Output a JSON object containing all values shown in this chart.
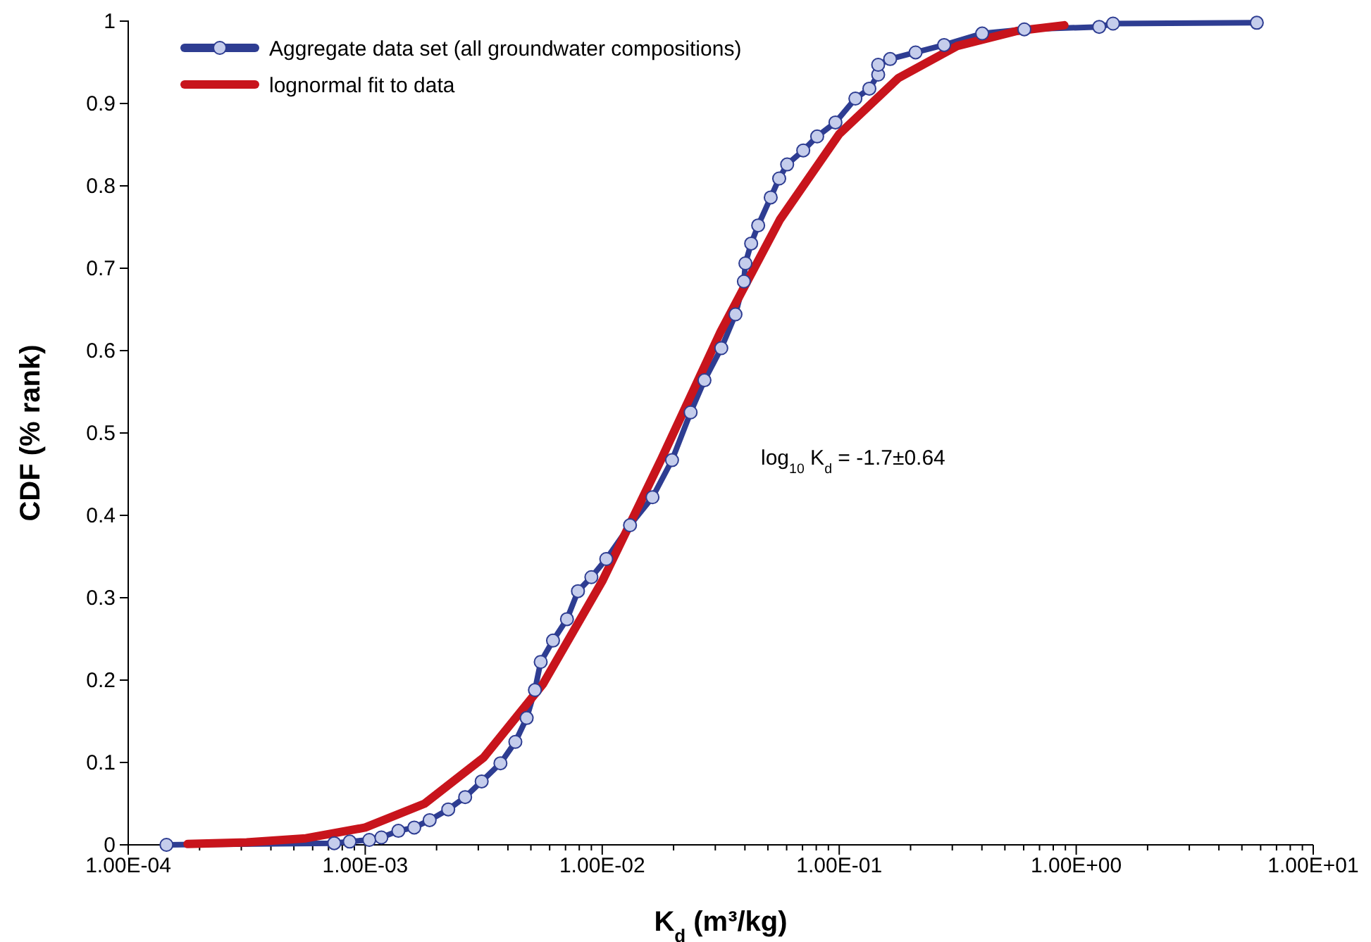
{
  "chart_data": {
    "type": "line",
    "xlabel": "K$_{d}$ (m³/kg)",
    "ylabel": "CDF (% rank)",
    "log": "x",
    "xlim": [
      0.0001,
      10
    ],
    "ylim": [
      0,
      1
    ],
    "xticks": [
      {
        "value": 0.0001,
        "label": "1.00E-04"
      },
      {
        "value": 0.0002,
        "label": null
      },
      {
        "value": 0.0003,
        "label": null
      },
      {
        "value": 0.0004,
        "label": null
      },
      {
        "value": 0.0005,
        "label": null
      },
      {
        "value": 0.0006,
        "label": null
      },
      {
        "value": 0.0007,
        "label": null
      },
      {
        "value": 0.0008,
        "label": null
      },
      {
        "value": 0.0009,
        "label": null
      },
      {
        "value": 0.001,
        "label": "1.00E-03"
      },
      {
        "value": 0.002,
        "label": null
      },
      {
        "value": 0.003,
        "label": null
      },
      {
        "value": 0.004,
        "label": null
      },
      {
        "value": 0.005,
        "label": null
      },
      {
        "value": 0.006,
        "label": null
      },
      {
        "value": 0.007,
        "label": null
      },
      {
        "value": 0.008,
        "label": null
      },
      {
        "value": 0.009,
        "label": null
      },
      {
        "value": 0.01,
        "label": "1.00E-02"
      },
      {
        "value": 0.02,
        "label": null
      },
      {
        "value": 0.03,
        "label": null
      },
      {
        "value": 0.04,
        "label": null
      },
      {
        "value": 0.05,
        "label": null
      },
      {
        "value": 0.06,
        "label": null
      },
      {
        "value": 0.07,
        "label": null
      },
      {
        "value": 0.08,
        "label": null
      },
      {
        "value": 0.09,
        "label": null
      },
      {
        "value": 0.1,
        "label": "1.00E-01"
      },
      {
        "value": 0.2,
        "label": null
      },
      {
        "value": 0.3,
        "label": null
      },
      {
        "value": 0.4,
        "label": null
      },
      {
        "value": 0.5,
        "label": null
      },
      {
        "value": 0.6,
        "label": null
      },
      {
        "value": 0.7,
        "label": null
      },
      {
        "value": 0.8,
        "label": null
      },
      {
        "value": 0.9,
        "label": null
      },
      {
        "value": 1,
        "label": "1.00E+00"
      },
      {
        "value": 2,
        "label": null
      },
      {
        "value": 3,
        "label": null
      },
      {
        "value": 4,
        "label": null
      },
      {
        "value": 5,
        "label": null
      },
      {
        "value": 6,
        "label": null
      },
      {
        "value": 7,
        "label": null
      },
      {
        "value": 8,
        "label": null
      },
      {
        "value": 9,
        "label": null
      },
      {
        "value": 10,
        "label": "1.00E+01"
      }
    ],
    "yticks": [
      0,
      0.1,
      0.2,
      0.3,
      0.4,
      0.5,
      0.6,
      0.7,
      0.8,
      0.9,
      1
    ],
    "legend": "top left",
    "grid": false,
    "annotations": [
      "log$_{10}$ K$_{d}$ = -1.7±0.64"
    ],
    "series": [
      {
        "name": "Aggregate data set (all groundwater compositions)",
        "color": "#2e3d92",
        "marker": "circle",
        "x": [
          0.000145,
          0.00074,
          0.00086,
          0.00104,
          0.00117,
          0.00138,
          0.00161,
          0.00187,
          0.00224,
          0.00264,
          0.0031,
          0.00372,
          0.0043,
          0.0048,
          0.0052,
          0.0055,
          0.0062,
          0.0071,
          0.0079,
          0.009,
          0.0104,
          0.0131,
          0.0163,
          0.0197,
          0.0236,
          0.027,
          0.0318,
          0.0365,
          0.0396,
          0.0402,
          0.0425,
          0.0455,
          0.0514,
          0.0558,
          0.0603,
          0.0705,
          0.0807,
          0.0964,
          0.117,
          0.134,
          0.146,
          0.146,
          0.164,
          0.21,
          0.277,
          0.401,
          0.604,
          1.25,
          1.43,
          5.78
        ],
        "values": [
          0,
          0.002,
          0.004,
          0.006,
          0.009,
          0.017,
          0.021,
          0.03,
          0.043,
          0.058,
          0.077,
          0.099,
          0.125,
          0.154,
          0.188,
          0.222,
          0.248,
          0.274,
          0.308,
          0.325,
          0.347,
          0.388,
          0.422,
          0.467,
          0.525,
          0.564,
          0.603,
          0.644,
          0.684,
          0.706,
          0.73,
          0.752,
          0.786,
          0.809,
          0.826,
          0.843,
          0.86,
          0.877,
          0.906,
          0.918,
          0.935,
          0.947,
          0.954,
          0.962,
          0.971,
          0.985,
          0.99,
          0.993,
          0.997,
          0.998
        ]
      },
      {
        "name": "lognormal fit to data",
        "color": "#c8141c",
        "marker": "none",
        "x": [
          0.000178,
          0.000316,
          0.000562,
          0.001,
          0.00178,
          0.00316,
          0.00562,
          0.01,
          0.0178,
          0.0316,
          0.0562,
          0.1,
          0.178,
          0.316,
          0.562,
          0.891
        ],
        "values": [
          0.001,
          0.003,
          0.008,
          0.021,
          0.05,
          0.106,
          0.195,
          0.32,
          0.469,
          0.623,
          0.759,
          0.863,
          0.931,
          0.97,
          0.988,
          0.995
        ]
      }
    ]
  }
}
